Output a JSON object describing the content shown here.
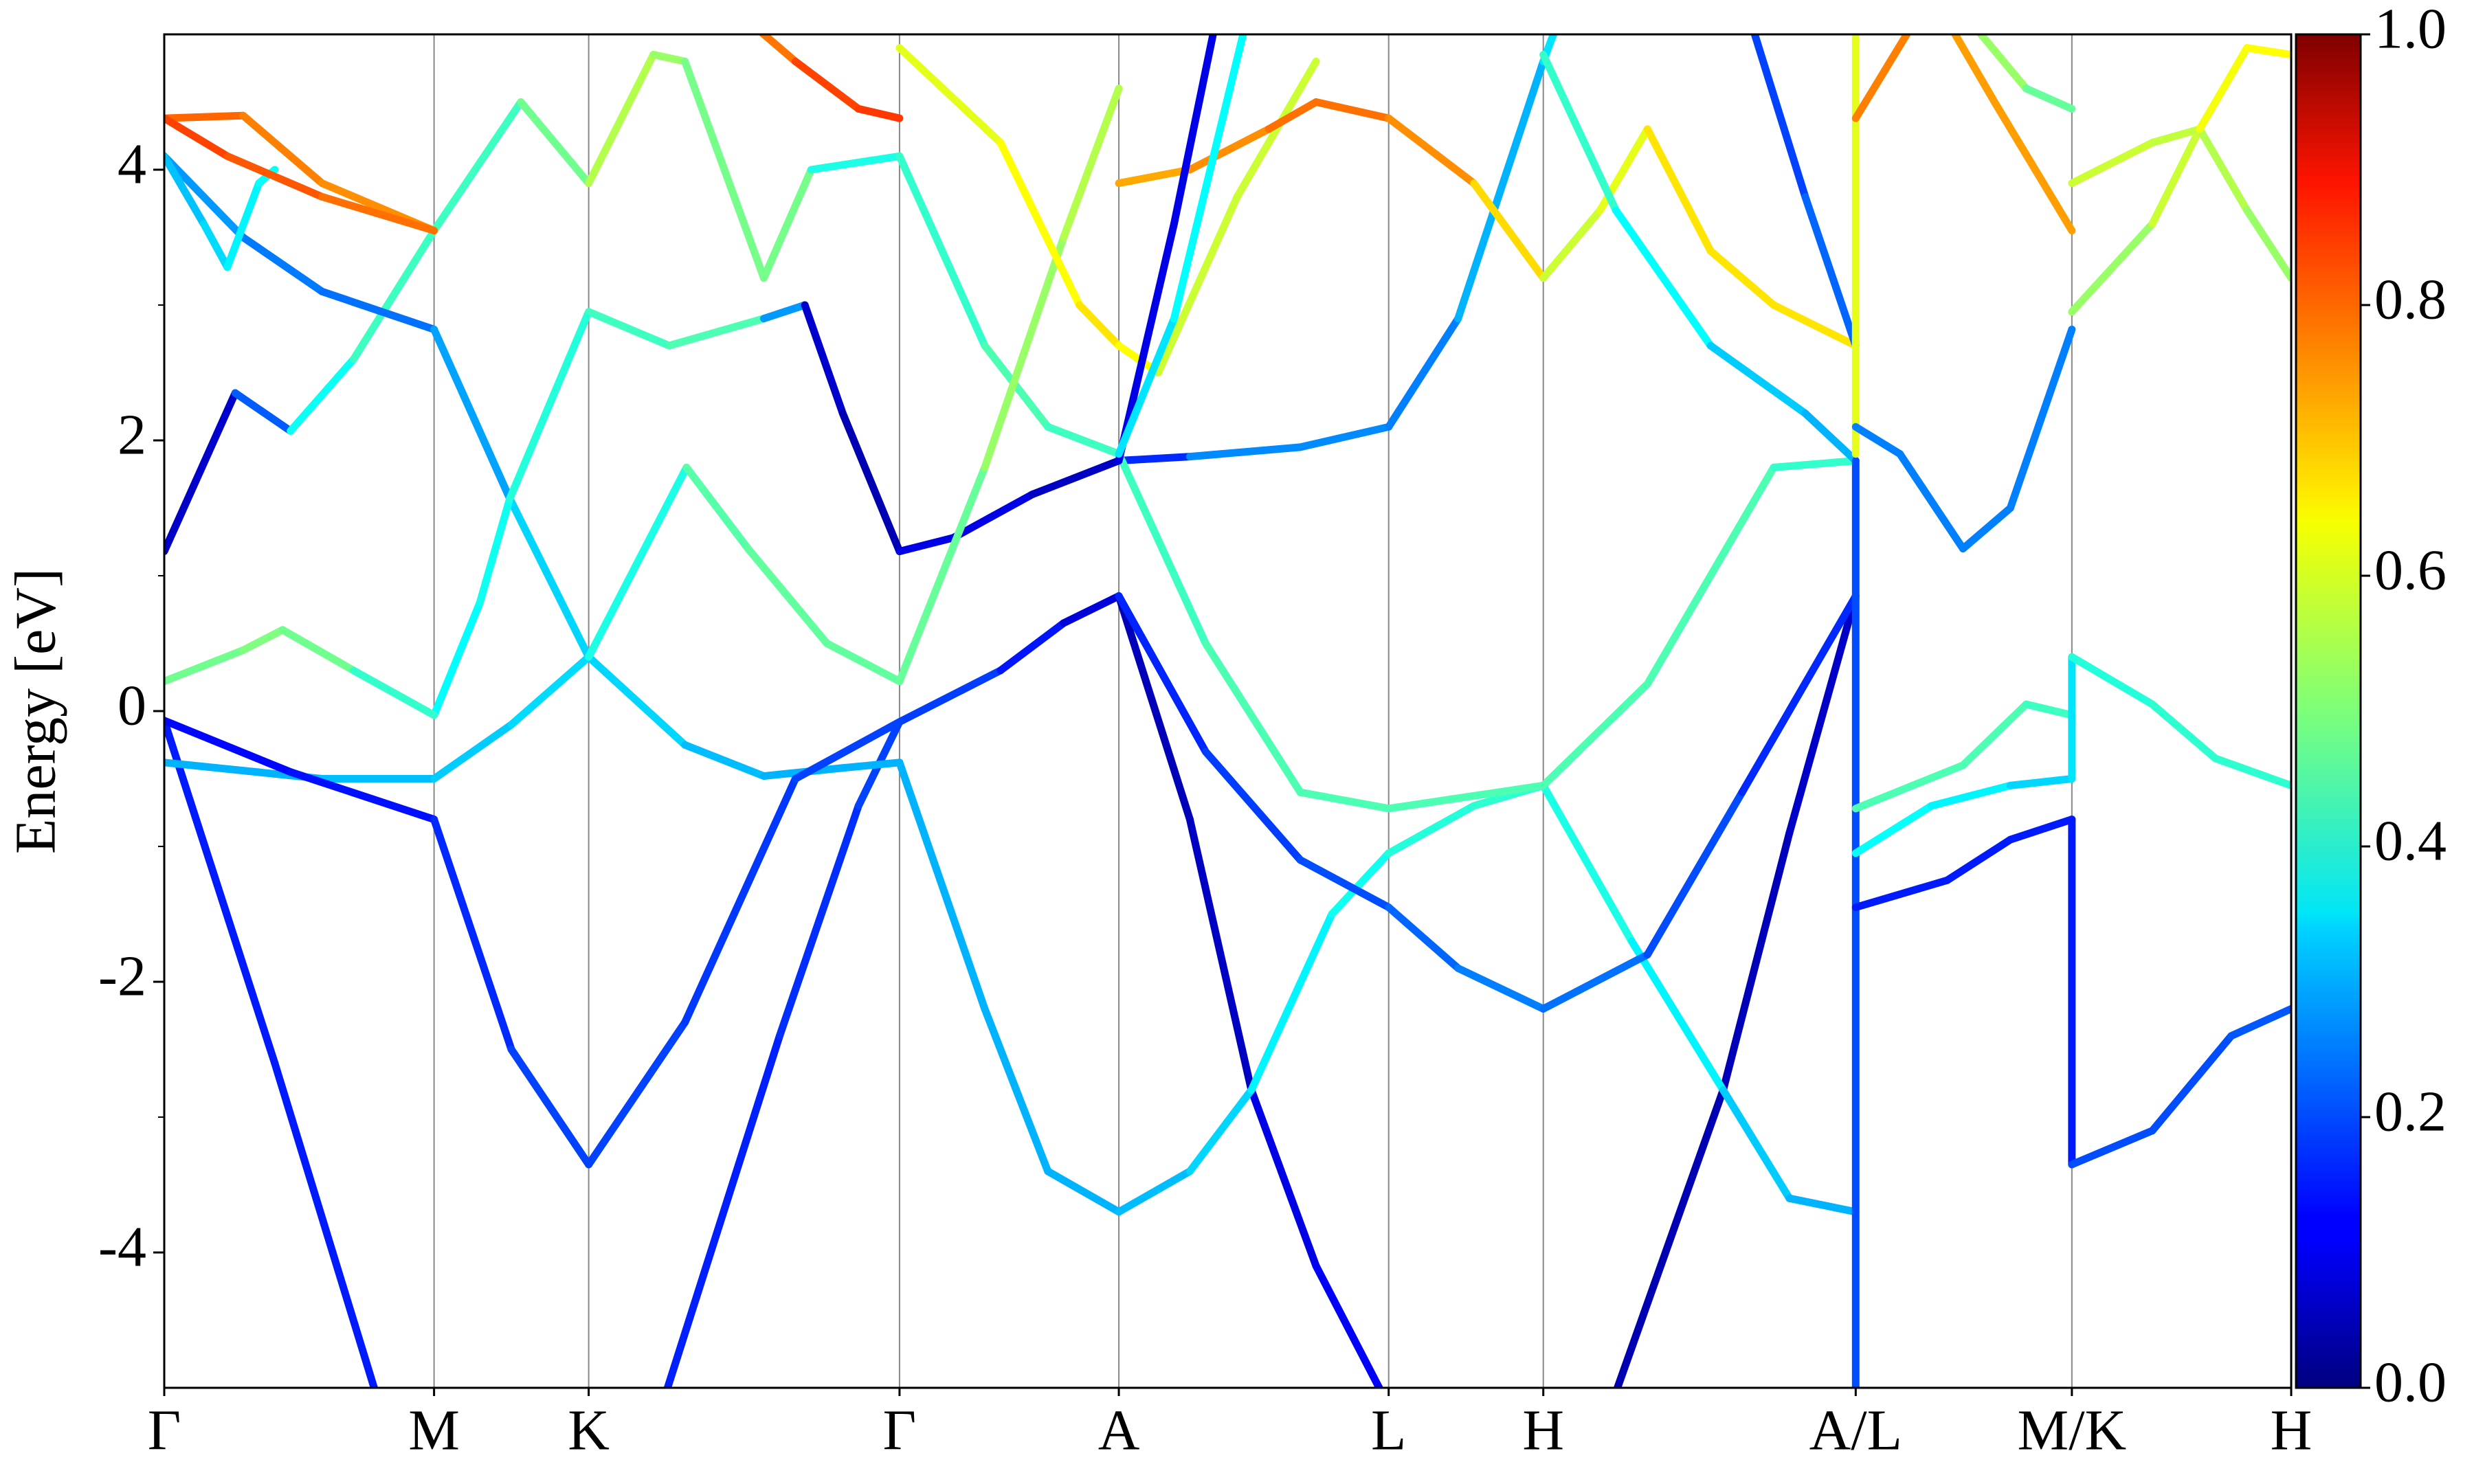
{
  "chart_data": {
    "type": "band-structure",
    "ylabel": "Energy [eV]",
    "xlim": [
      0,
      13.48
    ],
    "ylim": [
      -5,
      5
    ],
    "xticks": [
      {
        "value": 0,
        "label": "Γ"
      },
      {
        "value": 1.71,
        "label": "M"
      },
      {
        "value": 2.69,
        "label": "K"
      },
      {
        "value": 4.66,
        "label": "Γ"
      },
      {
        "value": 6.05,
        "label": "A"
      },
      {
        "value": 7.76,
        "label": "L"
      },
      {
        "value": 8.74,
        "label": "H"
      },
      {
        "value": 10.72,
        "label": "A/L"
      },
      {
        "value": 12.09,
        "label": "M/K"
      },
      {
        "value": 13.48,
        "label": "H"
      }
    ],
    "yticks": [
      -4,
      -2,
      0,
      2,
      4
    ],
    "yminorticks": [
      -3,
      -1,
      1,
      3
    ],
    "grid": true,
    "colorbar": {
      "lim": [
        0,
        1
      ],
      "ticks": [
        {
          "value": 0,
          "label": "0.0"
        },
        0.2,
        0.4,
        0.6,
        0.8,
        {
          "value": 1,
          "label": "1.0"
        }
      ],
      "colormap": "jet"
    },
    "bands": [
      {
        "x": [
          0,
          0.7,
          1.33,
          1.5
        ],
        "values": [
          -0.07,
          -2.6,
          -5,
          -5.7
        ],
        "weights": [
          0.15,
          0.15,
          0.15,
          0.15
        ]
      },
      {
        "x": [
          3.0,
          3.19,
          3.9,
          4.4,
          4.66,
          5.3,
          5.7,
          6.05,
          6.5,
          6.89,
          7.3,
          7.7,
          7.8
        ],
        "values": [
          -5.7,
          -5,
          -2.4,
          -0.7,
          -0.08,
          0.3,
          0.65,
          0.85,
          -0.8,
          -2.8,
          -4.1,
          -5.0,
          -5.4
        ],
        "weights": [
          0.15,
          0.15,
          0.16,
          0.18,
          0.2,
          0.17,
          0.12,
          0.06,
          0.05,
          0.08,
          0.12,
          0.12,
          0.12
        ]
      },
      {
        "x": [
          9.1,
          9.21,
          9.88,
          10.3,
          10.72
        ],
        "values": [
          -5.4,
          -5,
          -2.8,
          -0.9,
          0.85
        ],
        "weights": [
          0.05,
          0.05,
          0.05,
          0.06,
          0.08
        ]
      },
      {
        "x": [
          0,
          1,
          1.71,
          2.2,
          2.69,
          3.3,
          3.8,
          4.3,
          4.66,
          5.2,
          5.6,
          6.05,
          6.5,
          6.89,
          7.4,
          7.76,
          8.3,
          8.74,
          9.3,
          9.88,
          10.3,
          10.72
        ],
        "values": [
          -0.38,
          -0.5,
          -0.5,
          -0.1,
          0.4,
          -0.25,
          -0.48,
          -0.42,
          -0.38,
          -2.2,
          -3.4,
          -3.7,
          -3.4,
          -2.8,
          -1.5,
          -1.05,
          -0.7,
          -0.55,
          -1.7,
          -2.8,
          -3.6,
          -3.7
        ],
        "weights": [
          0.3,
          0.3,
          0.32,
          0.33,
          0.35,
          0.32,
          0.3,
          0.3,
          0.3,
          0.3,
          0.3,
          0.3,
          0.32,
          0.35,
          0.38,
          0.4,
          0.42,
          0.42,
          0.38,
          0.35,
          0.3,
          0.3
        ]
      },
      {
        "x": [
          0,
          0.8,
          1.71,
          2.2,
          2.69,
          3.3,
          4,
          4.66
        ],
        "values": [
          -0.07,
          -0.45,
          -0.8,
          -2.5,
          -3.35,
          -2.3,
          -0.5,
          -0.08
        ],
        "weights": [
          0.13,
          0.13,
          0.15,
          0.18,
          0.2,
          0.18,
          0.18,
          0.2
        ]
      },
      {
        "x": [
          6.05,
          6.6,
          7.2,
          7.76,
          8.2,
          8.74,
          9.4,
          10,
          10.72
        ],
        "values": [
          0.85,
          -0.3,
          -1.1,
          -1.45,
          -1.9,
          -2.2,
          -1.8,
          -0.6,
          0.85
        ],
        "weights": [
          0.15,
          0.17,
          0.2,
          0.2,
          0.25,
          0.25,
          0.22,
          0.18,
          0.15
        ]
      },
      {
        "x": [
          0,
          0.2,
          0.45,
          0.8,
          1.2,
          1.71,
          2.26,
          2.69,
          3.1,
          3.3,
          3.8,
          4.1,
          4.66
        ],
        "values": [
          1.18,
          1.7,
          2.35,
          2.07,
          2.6,
          3.55,
          4.5,
          3.9,
          4.85,
          4.8,
          3.2,
          4.0,
          4.1
        ],
        "weights": [
          0.07,
          0.07,
          0.08,
          0.35,
          0.42,
          0.45,
          0.42,
          0.55,
          0.55,
          0.5,
          0.48,
          0.5,
          0.3
        ]
      },
      {
        "x": [
          0,
          0.5,
          1.0,
          1.71,
          2.19,
          2.69
        ],
        "values": [
          4.1,
          3.5,
          3.1,
          2.82,
          1.57,
          0.4
        ],
        "weights": [
          0.28,
          0.27,
          0.22,
          0.25,
          0.32,
          0.35
        ]
      },
      {
        "x": [
          0,
          0.25,
          0.4,
          0.6,
          0.7
        ],
        "values": [
          4.1,
          3.6,
          3.28,
          3.9,
          4.0
        ],
        "weights": [
          0.3,
          0.33,
          0.35,
          0.38,
          0.38
        ]
      },
      {
        "x": [
          1.71,
          2.0,
          2.19,
          2.69,
          3.2,
          3.8,
          4.06,
          4.3,
          4.66
        ],
        "values": [
          -0.03,
          0.8,
          1.57,
          2.95,
          2.7,
          2.9,
          3.0,
          2.2,
          1.18
        ],
        "weights": [
          0.37,
          0.38,
          0.4,
          0.42,
          0.45,
          0.45,
          0.1,
          0.05,
          0.05
        ]
      },
      {
        "x": [
          0,
          0.5,
          0.75,
          1.2,
          1.71
        ],
        "values": [
          0.22,
          0.45,
          0.6,
          0.3,
          -0.03
        ],
        "weights": [
          0.47,
          0.5,
          0.5,
          0.47,
          0.38
        ]
      },
      {
        "x": [
          2.69,
          3.31,
          3.7,
          4.2,
          4.66
        ],
        "values": [
          0.4,
          1.8,
          1.2,
          0.5,
          0.22
        ],
        "weights": [
          0.35,
          0.45,
          0.47,
          0.47,
          0.47
        ]
      },
      {
        "x": [
          4.66,
          5.0,
          5.5,
          6.05,
          6.5,
          7.2,
          7.76,
          8.2,
          8.74,
          8.9
        ],
        "values": [
          1.18,
          1.28,
          1.6,
          1.85,
          1.88,
          1.95,
          2.1,
          2.9,
          4.8,
          5.3
        ],
        "weights": [
          0.05,
          0.15,
          0.05,
          0.08,
          0.25,
          0.27,
          0.25,
          0.25,
          0.35,
          0.35
        ]
      },
      {
        "x": [
          4.66,
          5.2,
          5.6,
          6.05,
          6.6,
          7.2,
          7.76,
          8.74,
          9.4,
          10.2,
          10.72
        ],
        "values": [
          4.1,
          2.7,
          2.1,
          1.9,
          0.5,
          -0.6,
          -0.72,
          -0.55,
          0.2,
          1.8,
          1.85
        ],
        "weights": [
          0.4,
          0.45,
          0.45,
          0.42,
          0.45,
          0.45,
          0.45,
          0.45,
          0.45,
          0.45,
          0.4
        ]
      },
      {
        "x": [
          4.66,
          5.2,
          5.7,
          6.05
        ],
        "values": [
          0.22,
          1.8,
          3.5,
          4.6
        ],
        "weights": [
          0.45,
          0.5,
          0.55,
          0.55
        ]
      },
      {
        "x": [
          4.66,
          5.3,
          5.8,
          6.05,
          6.3,
          6.8,
          7.3
        ],
        "values": [
          4.9,
          4.2,
          3.0,
          2.7,
          2.5,
          3.8,
          4.8
        ],
        "weights": [
          0.6,
          0.6,
          0.65,
          0.65,
          0.6,
          0.55,
          0.6
        ]
      },
      {
        "x": [
          6.05,
          6.5,
          7.0,
          7.3,
          7.76,
          8.3,
          8.74,
          9.1,
          9.4,
          9.8,
          10.2,
          10.72
        ],
        "values": [
          3.9,
          4.0,
          4.3,
          4.5,
          4.38,
          3.9,
          3.2,
          3.7,
          4.3,
          3.4,
          3.0,
          2.7
        ],
        "weights": [
          0.7,
          0.72,
          0.75,
          0.78,
          0.75,
          0.72,
          0.6,
          0.55,
          0.65,
          0.65,
          0.65,
          0.65
        ]
      },
      {
        "x": [
          6.05,
          6.4,
          6.7
        ],
        "values": [
          1.85,
          3.6,
          5.3
        ],
        "weights": [
          0.1,
          0.1,
          0.1
        ]
      },
      {
        "x": [
          6.05,
          6.4,
          6.9
        ],
        "values": [
          1.9,
          2.9,
          5.3
        ],
        "weights": [
          0.35,
          0.35,
          0.4
        ]
      },
      {
        "x": [
          8.74,
          9.2,
          9.8,
          10.4,
          10.72
        ],
        "values": [
          4.85,
          3.7,
          2.7,
          2.2,
          1.85
        ],
        "weights": [
          0.45,
          0.4,
          0.35,
          0.3,
          0.3
        ]
      },
      {
        "x": [
          10.0,
          10.4,
          10.72
        ],
        "values": [
          5.3,
          3.8,
          2.7
        ],
        "weights": [
          0.18,
          0.2,
          0.25
        ]
      },
      {
        "x": [
          0,
          0.5,
          1.0,
          1.71
        ],
        "values": [
          4.38,
          4.4,
          3.9,
          3.55
        ],
        "weights": [
          0.8,
          0.75,
          0.75,
          0.72
        ]
      },
      {
        "x": [
          0,
          0.4,
          1.0,
          1.71
        ],
        "values": [
          4.38,
          4.1,
          3.8,
          3.55
        ],
        "weights": [
          0.82,
          0.8,
          0.78,
          0.75
        ]
      },
      {
        "x": [
          3.5,
          4.0,
          4.4,
          4.66
        ],
        "values": [
          5.3,
          4.8,
          4.45,
          4.38
        ],
        "weights": [
          0.72,
          0.8,
          0.82,
          0.82
        ]
      },
      {
        "x": [
          10.72,
          10.72
        ],
        "values": [
          -5.5,
          1.85
        ],
        "weights": [
          0.2,
          0.2
        ]
      },
      {
        "x": [
          10.72,
          10.72
        ],
        "values": [
          1.9,
          5.3
        ],
        "weights": [
          0.6,
          0.6
        ]
      },
      {
        "x": [
          10.72,
          11.0,
          11.4,
          11.7,
          12.09
        ],
        "values": [
          2.1,
          1.9,
          1.2,
          1.5,
          2.82
        ],
        "weights": [
          0.25,
          0.25,
          0.25,
          0.25,
          0.25
        ]
      },
      {
        "x": [
          10.72,
          11.4,
          11.8,
          12.09
        ],
        "values": [
          -0.72,
          -0.4,
          0.05,
          -0.03
        ],
        "weights": [
          0.45,
          0.45,
          0.45,
          0.42
        ]
      },
      {
        "x": [
          10.72,
          11.2,
          11.7,
          12.09
        ],
        "values": [
          -1.05,
          -0.7,
          -0.55,
          -0.5
        ],
        "weights": [
          0.38,
          0.38,
          0.35,
          0.32
        ]
      },
      {
        "x": [
          10.72,
          11.3,
          11.7,
          12.09
        ],
        "values": [
          -1.45,
          -1.25,
          -0.95,
          -0.8
        ],
        "weights": [
          0.15,
          0.15,
          0.15,
          0.15
        ]
      },
      {
        "x": [
          10.72,
          11.2
        ],
        "values": [
          4.38,
          5.3
        ],
        "weights": [
          0.75,
          0.75
        ]
      },
      {
        "x": [
          11.2,
          11.6,
          12.09
        ],
        "values": [
          5.3,
          4.5,
          3.55
        ],
        "weights": [
          0.72,
          0.72,
          0.72
        ]
      },
      {
        "x": [
          11.3,
          11.8,
          12.09
        ],
        "values": [
          5.3,
          4.6,
          4.45
        ],
        "weights": [
          0.55,
          0.5,
          0.45
        ]
      },
      {
        "x": [
          12.09,
          12.09
        ],
        "values": [
          -3.35,
          -0.8
        ],
        "weights": [
          0.15,
          0.15
        ]
      },
      {
        "x": [
          12.09,
          12.09
        ],
        "values": [
          -0.5,
          0.4
        ],
        "weights": [
          0.35,
          0.35
        ]
      },
      {
        "x": [
          12.09,
          12.6,
          13.1,
          13.48
        ],
        "values": [
          -3.35,
          -3.1,
          -2.4,
          -2.2
        ],
        "weights": [
          0.2,
          0.2,
          0.2,
          0.22
        ]
      },
      {
        "x": [
          12.09,
          12.6,
          13.0,
          13.48
        ],
        "values": [
          0.4,
          0.05,
          -0.35,
          -0.55
        ],
        "weights": [
          0.4,
          0.42,
          0.42,
          0.42
        ]
      },
      {
        "x": [
          12.09,
          12.6,
          12.9,
          13.2,
          13.48
        ],
        "values": [
          2.95,
          3.6,
          4.3,
          3.7,
          3.2
        ],
        "weights": [
          0.5,
          0.55,
          0.6,
          0.5,
          0.55
        ]
      },
      {
        "x": [
          12.09,
          12.6,
          12.9,
          13.2,
          13.48
        ],
        "values": [
          3.9,
          4.2,
          4.3,
          4.9,
          4.85
        ],
        "weights": [
          0.6,
          0.55,
          0.58,
          0.65,
          0.6
        ]
      }
    ]
  }
}
